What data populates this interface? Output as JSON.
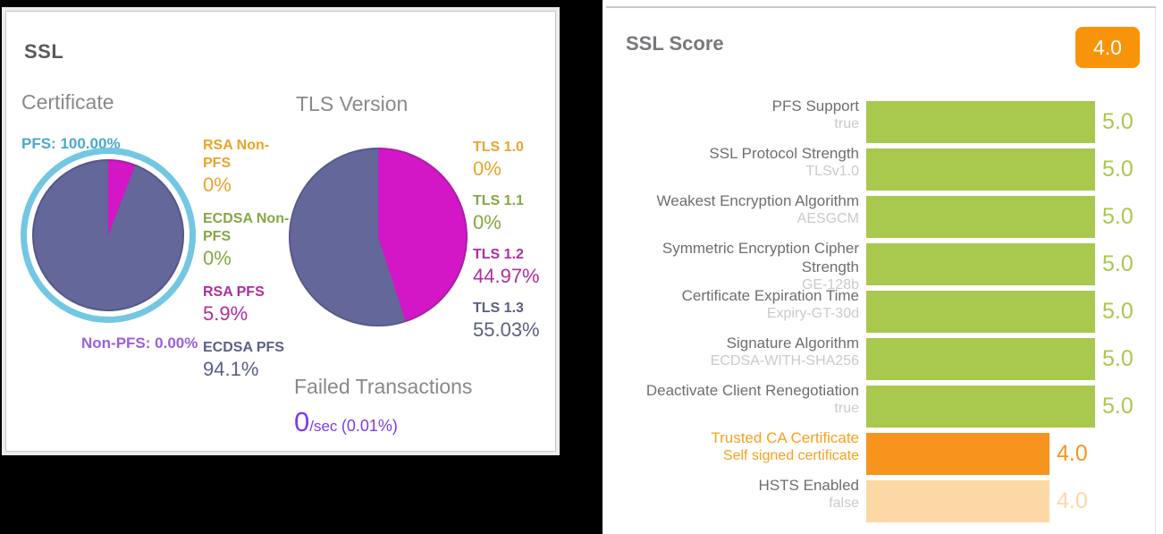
{
  "ssl_panel": {
    "title": "SSL",
    "certificate": {
      "title": "Certificate",
      "ring_label": "PFS: 100.00%",
      "bottom_label": "Non-PFS: 0.00%",
      "ring_color": "#72c7e2",
      "pie": [
        {
          "name": "RSA PFS",
          "value": 5.9,
          "color": "#d316c6"
        },
        {
          "name": "ECDSA PFS",
          "value": 94.1,
          "color": "#63679a"
        }
      ],
      "legend": [
        {
          "label": "RSA Non-PFS",
          "value": "0%",
          "color": "#eaa42a"
        },
        {
          "label": "ECDSA Non-PFS",
          "value": "0%",
          "color": "#85a844"
        },
        {
          "label": "RSA PFS",
          "value": "5.9%",
          "color": "#b02d9e"
        },
        {
          "label": "ECDSA PFS",
          "value": "94.1%",
          "color": "#5c6084"
        }
      ]
    },
    "tls_version": {
      "title": "TLS Version",
      "pie": [
        {
          "name": "TLS 1.2",
          "value": 44.97,
          "color": "#d316c6"
        },
        {
          "name": "TLS 1.3",
          "value": 55.03,
          "color": "#63679a"
        }
      ],
      "legend": [
        {
          "label": "TLS 1.0",
          "value": "0%",
          "color": "#eaa42a"
        },
        {
          "label": "TLS 1.1",
          "value": "0%",
          "color": "#85a844"
        },
        {
          "label": "TLS 1.2",
          "value": "44.97%",
          "color": "#b02d9e"
        },
        {
          "label": "TLS 1.3",
          "value": "55.03%",
          "color": "#5c6084"
        }
      ]
    },
    "failed_transactions": {
      "title": "Failed Transactions",
      "value": "0",
      "unit": "/sec",
      "pct": "(0.01%)",
      "color": "#7c3bef"
    }
  },
  "score_panel": {
    "title": "SSL Score",
    "badge": "4.0",
    "badge_color": "#f8940a",
    "max_score": 5,
    "colors": {
      "green": "#a9c84e",
      "orange": "#f7941e",
      "pale": "#fcd9a4",
      "label": "#6d6e71",
      "sub": "#c9cacb",
      "highlight": "#f7a11e"
    },
    "rows": [
      {
        "label": "PFS Support",
        "sub": "true",
        "value": "5.0",
        "score": 5.0,
        "variant": "green",
        "highlight": false
      },
      {
        "label": "SSL Protocol Strength",
        "sub": "TLSv1.0",
        "value": "5.0",
        "score": 5.0,
        "variant": "green",
        "highlight": false
      },
      {
        "label": "Weakest Encryption Algorithm",
        "sub": "AESGCM",
        "value": "5.0",
        "score": 5.0,
        "variant": "green",
        "highlight": false
      },
      {
        "label": "Symmetric Encryption Cipher Strength",
        "sub": "GE-128b",
        "value": "5.0",
        "score": 5.0,
        "variant": "green",
        "highlight": false
      },
      {
        "label": "Certificate Expiration Time",
        "sub": "Expiry-GT-30d",
        "value": "5.0",
        "score": 5.0,
        "variant": "green",
        "highlight": false
      },
      {
        "label": "Signature Algorithm",
        "sub": "ECDSA-WITH-SHA256",
        "value": "5.0",
        "score": 5.0,
        "variant": "green",
        "highlight": false
      },
      {
        "label": "Deactivate Client Renegotiation",
        "sub": "true",
        "value": "5.0",
        "score": 5.0,
        "variant": "green",
        "highlight": false
      },
      {
        "label": "Trusted CA Certificate",
        "sub": "Self signed certificate",
        "value": "4.0",
        "score": 4.0,
        "variant": "orange",
        "highlight": true
      },
      {
        "label": "HSTS Enabled",
        "sub": "false",
        "value": "4.0",
        "score": 4.0,
        "variant": "pale",
        "highlight": false
      }
    ]
  },
  "chart_data": [
    {
      "type": "pie",
      "title": "Certificate",
      "slices": [
        {
          "label": "RSA Non-PFS",
          "value": 0
        },
        {
          "label": "ECDSA Non-PFS",
          "value": 0
        },
        {
          "label": "RSA PFS",
          "value": 5.9
        },
        {
          "label": "ECDSA PFS",
          "value": 94.1
        }
      ],
      "annotations": [
        "PFS: 100.00%",
        "Non-PFS: 0.00%"
      ],
      "legend_position": "right"
    },
    {
      "type": "pie",
      "title": "TLS Version",
      "slices": [
        {
          "label": "TLS 1.0",
          "value": 0
        },
        {
          "label": "TLS 1.1",
          "value": 0
        },
        {
          "label": "TLS 1.2",
          "value": 44.97
        },
        {
          "label": "TLS 1.3",
          "value": 55.03
        }
      ],
      "legend_position": "right"
    },
    {
      "type": "bar",
      "title": "SSL Score",
      "orientation": "horizontal",
      "categories": [
        "PFS Support",
        "SSL Protocol Strength",
        "Weakest Encryption Algorithm",
        "Symmetric Encryption Cipher Strength",
        "Certificate Expiration Time",
        "Signature Algorithm",
        "Deactivate Client Renegotiation",
        "Trusted CA Certificate",
        "HSTS Enabled"
      ],
      "category_sublabels": [
        "true",
        "TLSv1.0",
        "AESGCM",
        "GE-128b",
        "Expiry-GT-30d",
        "ECDSA-WITH-SHA256",
        "true",
        "Self signed certificate",
        "false"
      ],
      "values": [
        5.0,
        5.0,
        5.0,
        5.0,
        5.0,
        5.0,
        5.0,
        4.0,
        4.0
      ],
      "xlim": [
        0,
        5
      ],
      "grid": false,
      "overall_score": 4.0
    }
  ]
}
